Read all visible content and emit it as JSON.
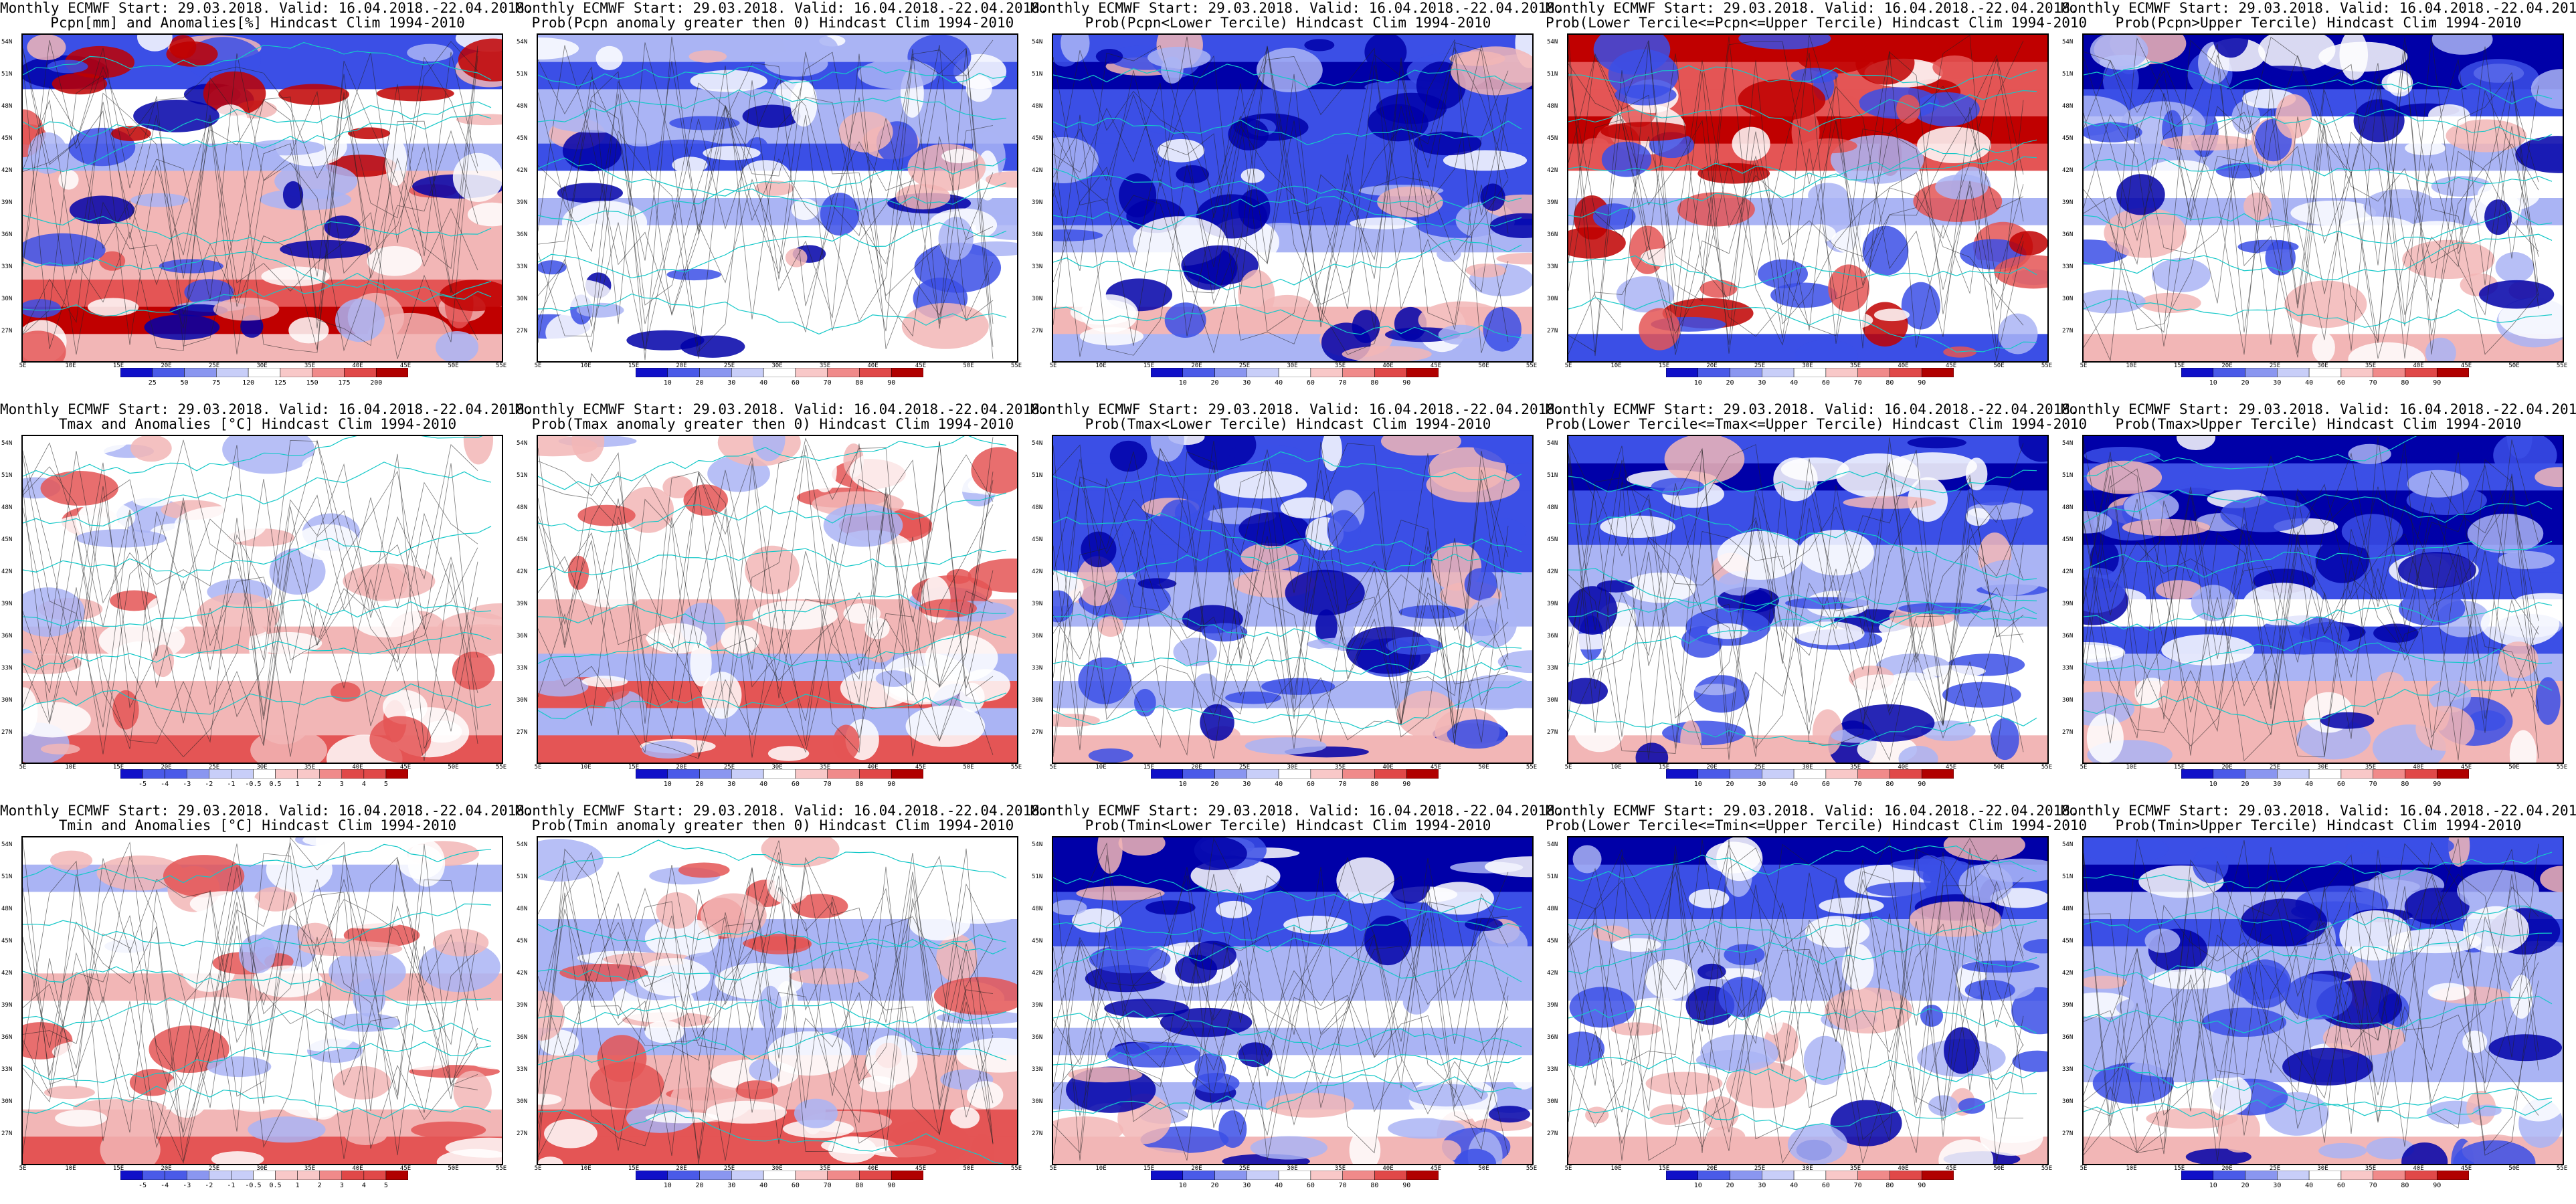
{
  "header_line": "Monthly ECMWF Start: 29.03.2018. Valid: 16.04.2018.-22.04.2018.",
  "panels": [
    {
      "title2": "Pcpn[mm] and Anomalies[%] Hindcast Clim 1994-2010",
      "palette": "precip",
      "ticks": [
        "25",
        "50",
        "75",
        "120",
        "125",
        "150",
        "175",
        "200"
      ]
    },
    {
      "title2": "Prob(Pcpn anomaly greater then 0) Hindcast Clim 1994-2010",
      "palette": "prob_low",
      "ticks": [
        "10",
        "20",
        "30",
        "40",
        "60",
        "70",
        "80",
        "90"
      ]
    },
    {
      "title2": "Prob(Pcpn<Lower Tercile) Hindcast Clim 1994-2010",
      "palette": "prob_dry",
      "ticks": [
        "10",
        "20",
        "30",
        "40",
        "60",
        "70",
        "80",
        "90"
      ]
    },
    {
      "title2": "Prob(Lower Tercile<=Pcpn<=Upper Tercile) Hindcast Clim 1994-2010",
      "palette": "prob_mid",
      "ticks": [
        "10",
        "20",
        "30",
        "40",
        "60",
        "70",
        "80",
        "90"
      ]
    },
    {
      "title2": "Prob(Pcpn>Upper Tercile) Hindcast Clim 1994-2010",
      "palette": "prob_low",
      "ticks": [
        "10",
        "20",
        "30",
        "40",
        "60",
        "70",
        "80",
        "90"
      ]
    },
    {
      "title2": "Tmax and Anomalies [°C] Hindcast Clim 1994-2010",
      "palette": "anom",
      "ticks": [
        "-5",
        "-4",
        "-3",
        "-2",
        "-1",
        "-0.5",
        "0.5",
        "1",
        "2",
        "3",
        "4",
        "5"
      ]
    },
    {
      "title2": "Prob(Tmax anomaly greater then 0) Hindcast Clim 1994-2010",
      "palette": "prob_warm",
      "ticks": [
        "10",
        "20",
        "30",
        "40",
        "60",
        "70",
        "80",
        "90"
      ]
    },
    {
      "title2": "Prob(Tmax<Lower Tercile) Hindcast Clim 1994-2010",
      "palette": "prob_cool",
      "ticks": [
        "10",
        "20",
        "30",
        "40",
        "60",
        "70",
        "80",
        "90"
      ]
    },
    {
      "title2": "Prob(Lower Tercile<=Tmax<=Upper Tercile) Hindcast Clim 1994-2010",
      "palette": "prob_low",
      "ticks": [
        "10",
        "20",
        "30",
        "40",
        "60",
        "70",
        "80",
        "90"
      ]
    },
    {
      "title2": "Prob(Tmax>Upper Tercile) Hindcast Clim 1994-2010",
      "palette": "prob_cool",
      "ticks": [
        "10",
        "20",
        "30",
        "40",
        "60",
        "70",
        "80",
        "90"
      ]
    },
    {
      "title2": "Tmin and Anomalies [°C] Hindcast Clim 1994-2010",
      "palette": "anom",
      "ticks": [
        "-5",
        "-4",
        "-3",
        "-2",
        "-1",
        "-0.5",
        "0.5",
        "1",
        "2",
        "3",
        "4",
        "5"
      ]
    },
    {
      "title2": "Prob(Tmin anomaly greater then 0) Hindcast Clim 1994-2010",
      "palette": "prob_warm",
      "ticks": [
        "10",
        "20",
        "30",
        "40",
        "60",
        "70",
        "80",
        "90"
      ]
    },
    {
      "title2": "Prob(Tmin<Lower Tercile) Hindcast Clim 1994-2010",
      "palette": "prob_cool",
      "ticks": [
        "10",
        "20",
        "30",
        "40",
        "60",
        "70",
        "80",
        "90"
      ]
    },
    {
      "title2": "Prob(Lower Tercile<=Tmin<=Upper Tercile) Hindcast Clim 1994-2010",
      "palette": "prob_low",
      "ticks": [
        "10",
        "20",
        "30",
        "40",
        "60",
        "70",
        "80",
        "90"
      ]
    },
    {
      "title2": "Prob(Tmin>Upper Tercile) Hindcast Clim 1994-2010",
      "palette": "prob_cool",
      "ticks": [
        "10",
        "20",
        "30",
        "40",
        "60",
        "70",
        "80",
        "90"
      ]
    }
  ],
  "lat_labels": [
    "54N",
    "51N",
    "48N",
    "45N",
    "42N",
    "39N",
    "36N",
    "33N",
    "30N",
    "27N"
  ],
  "lon_labels": [
    "5E",
    "10E",
    "15E",
    "20E",
    "25E",
    "30E",
    "35E",
    "40E",
    "45E",
    "50E",
    "55E"
  ],
  "colors": {
    "blue_dark": "#0000a8",
    "blue_mid": "#3b4fe6",
    "blue_light": "#aab4f4",
    "red_light": "#f2b6b6",
    "red_mid": "#e45555",
    "red_dark": "#c00000",
    "coast": "#14c8c8",
    "contour": "#222222"
  }
}
